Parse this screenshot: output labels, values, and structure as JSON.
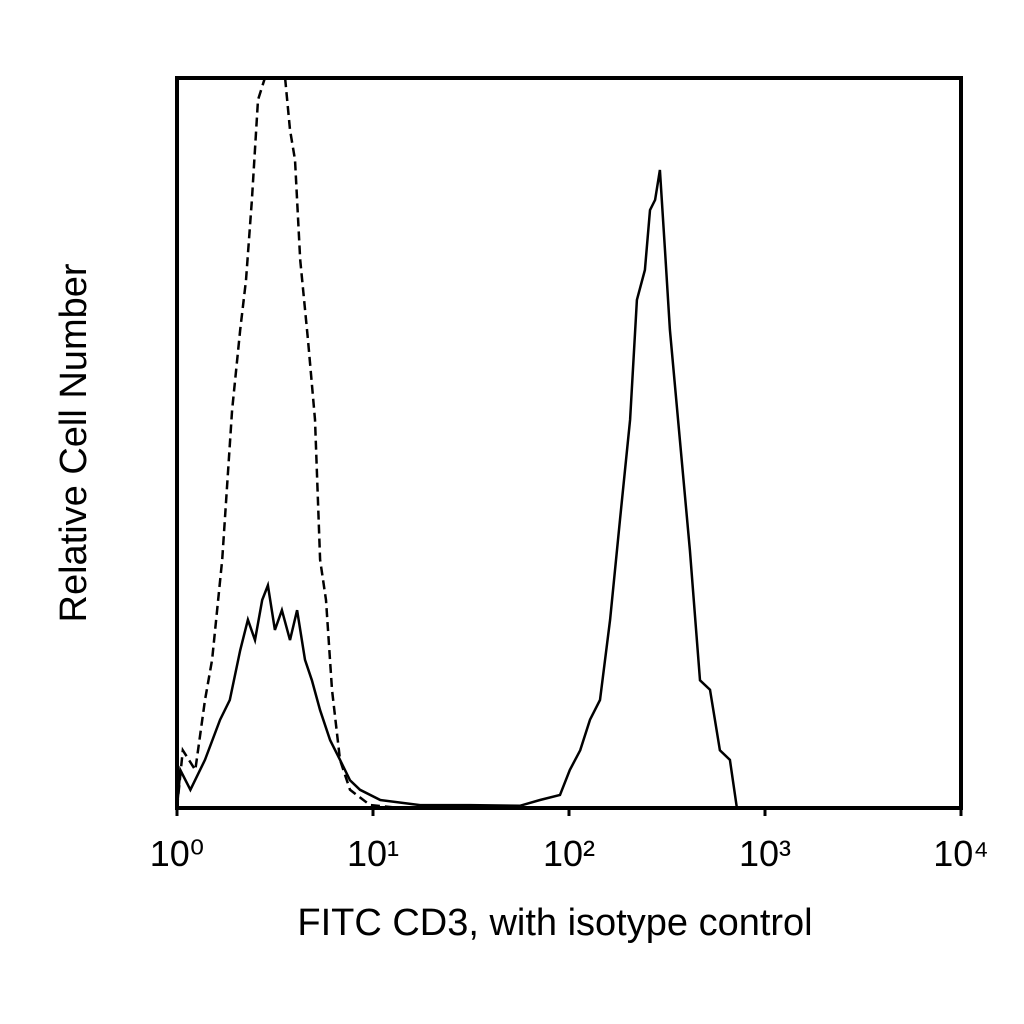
{
  "chart_data": {
    "type": "line",
    "xlabel": "FITC CD3, with isotype control",
    "ylabel": "Relative Cell Number",
    "xscale": "log",
    "xlim": [
      1,
      10000
    ],
    "xticks": [
      {
        "value": 1,
        "label": "10⁰"
      },
      {
        "value": 10,
        "label": "10¹"
      },
      {
        "value": 100,
        "label": "10²"
      },
      {
        "value": 1000,
        "label": "10³"
      },
      {
        "value": 10000,
        "label": "10⁴"
      }
    ],
    "ylim": [
      0,
      100
    ],
    "series": [
      {
        "color": "#000000",
        "dashed": true,
        "x": [
          1,
          1.07,
          1.24,
          1.39,
          1.51,
          1.7,
          1.91,
          2.1,
          2.25,
          2.41,
          2.59,
          2.81,
          3.56,
          3.77,
          4.0,
          4.25,
          4.66,
          5.06,
          5.37,
          5.76,
          6.18,
          6.79,
          7.63,
          9.66,
          13.7
        ],
        "values": [
          0,
          7.9,
          5.2,
          14.8,
          20.3,
          34.0,
          54.5,
          65.5,
          72.3,
          83.3,
          97.0,
          100,
          100,
          92.9,
          88.8,
          75.1,
          64.1,
          53.2,
          34.0,
          28.5,
          16.2,
          6.6,
          2.5,
          0.4,
          0
        ]
      },
      {
        "color": "#000000",
        "dashed": false,
        "x": [
          1,
          1.04,
          1.17,
          1.39,
          1.66,
          1.86,
          2.1,
          2.3,
          2.5,
          2.72,
          2.91,
          3.16,
          3.43,
          3.77,
          4.1,
          4.5,
          4.88,
          5.37,
          6.04,
          6.79,
          7.63,
          8.58,
          10.9,
          17.4,
          31.3,
          56.2,
          71.1,
          90.0,
          101,
          114,
          128,
          144,
          162,
          182,
          205,
          222,
          244,
          259,
          275,
          291,
          309,
          327,
          368,
          414,
          466,
          524,
          589,
          662,
          719,
          942
        ],
        "values": [
          0,
          5.2,
          2.5,
          6.6,
          12.1,
          14.8,
          21.6,
          25.8,
          23.0,
          28.5,
          30.5,
          24.4,
          27.1,
          23.0,
          27.1,
          20.3,
          17.5,
          13.4,
          9.3,
          6.6,
          3.8,
          2.5,
          1.1,
          0.4,
          0.4,
          0.3,
          1.1,
          1.8,
          5.2,
          7.9,
          12.1,
          14.8,
          25.8,
          39.5,
          53.2,
          69.6,
          73.7,
          81.9,
          83.3,
          87.4,
          76.4,
          65.5,
          50.4,
          35.3,
          17.5,
          16.2,
          7.9,
          6.6,
          0,
          0
        ]
      }
    ]
  }
}
